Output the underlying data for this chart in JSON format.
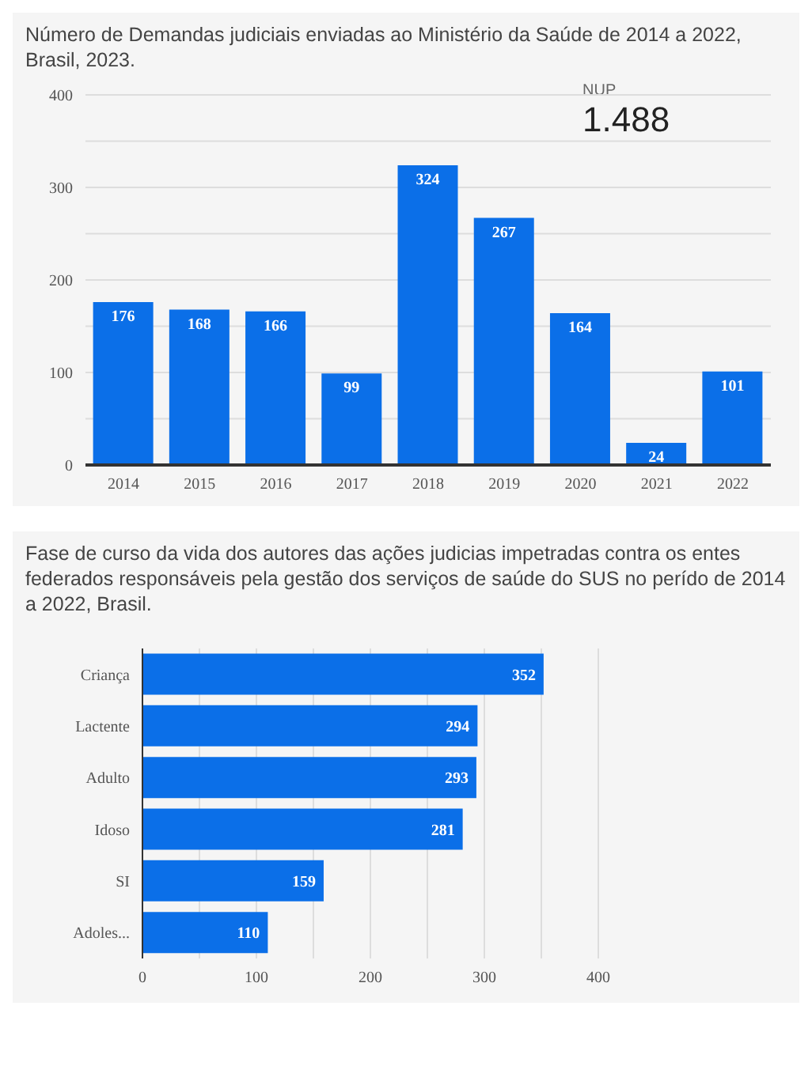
{
  "chart_data": [
    {
      "type": "bar",
      "title": "Número de Demandas judiciais enviadas ao Ministério da Saúde de 2014 a 2022, Brasil, 2023.",
      "categories": [
        "2014",
        "2015",
        "2016",
        "2017",
        "2018",
        "2019",
        "2020",
        "2021",
        "2022"
      ],
      "values": [
        176,
        168,
        166,
        99,
        324,
        267,
        164,
        24,
        101
      ],
      "color": "#0b6fe8",
      "ylim": [
        0,
        400
      ],
      "yticks": [
        0,
        {
          "value": 50,
          "label": null
        },
        100,
        {
          "value": 150,
          "label": null
        },
        200,
        {
          "value": 250,
          "label": null
        },
        300,
        {
          "value": 350,
          "label": null
        },
        400
      ],
      "grid": "y",
      "data_labels": true,
      "annotations": [
        "NUP",
        "1.488"
      ]
    },
    {
      "type": "bar",
      "orientation": "horizontal",
      "title": "Fase de curso da vida dos autores das ações judicias impetradas contra os entes federados responsáveis pela gestão dos serviços de saúde do SUS no perído de 2014 a 2022, Brasil.",
      "categories": [
        "Criança",
        "Lactente",
        "Adulto",
        "Idoso",
        "SI",
        "Adoles..."
      ],
      "values": [
        352,
        294,
        293,
        281,
        159,
        110
      ],
      "color": "#0b6fe8",
      "xlim": [
        0,
        400
      ],
      "xticks": [
        0,
        {
          "value": 50,
          "label": null
        },
        100,
        {
          "value": 150,
          "label": null
        },
        200,
        {
          "value": 250,
          "label": null
        },
        300,
        {
          "value": 350,
          "label": null
        },
        400
      ],
      "grid": "x",
      "data_labels": true
    }
  ]
}
